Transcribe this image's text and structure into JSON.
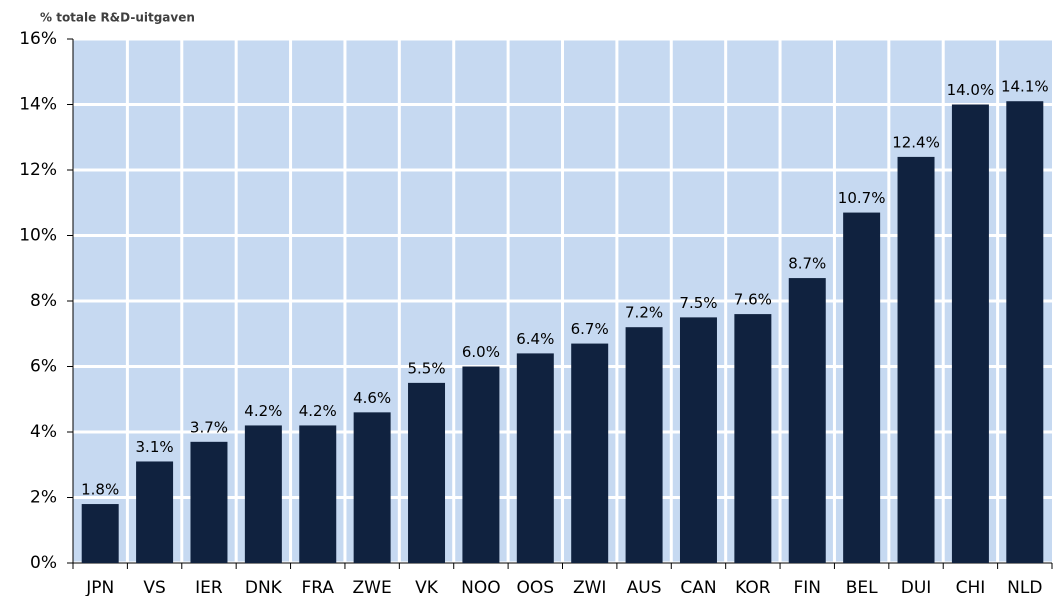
{
  "chart_data": {
    "type": "bar",
    "y_label": "% totale R&D-uitgaven",
    "categories": [
      "JPN",
      "VS",
      "IER",
      "DNK",
      "FRA",
      "ZWE",
      "VK",
      "NOO",
      "OOS",
      "ZWI",
      "AUS",
      "CAN",
      "KOR",
      "FIN",
      "BEL",
      "DUI",
      "CHI",
      "NLD"
    ],
    "values": [
      1.8,
      3.1,
      3.7,
      4.2,
      4.2,
      4.6,
      5.5,
      6.0,
      6.4,
      6.7,
      7.2,
      7.5,
      7.6,
      8.7,
      10.7,
      12.4,
      14.0,
      14.1
    ],
    "value_labels": [
      "1.8%",
      "3.1%",
      "3.7%",
      "4.2%",
      "4.2%",
      "4.6%",
      "5.5%",
      "6.0%",
      "6.4%",
      "6.7%",
      "7.2%",
      "7.5%",
      "7.6%",
      "8.7%",
      "10.7%",
      "12.4%",
      "14.0%",
      "14.1%"
    ],
    "color": "#10223f",
    "plot_background": "#c6d9f1",
    "ylim": [
      0,
      16
    ],
    "yticks": [
      {
        "value": 0,
        "label": "0%"
      },
      {
        "value": 2,
        "label": "2%"
      },
      {
        "value": 4,
        "label": "4%"
      },
      {
        "value": 6,
        "label": "6%"
      },
      {
        "value": 8,
        "label": "8%"
      },
      {
        "value": 10,
        "label": "10%"
      },
      {
        "value": 12,
        "label": "12%"
      },
      {
        "value": 14,
        "label": "14%"
      },
      {
        "value": 16,
        "label": "16%"
      }
    ],
    "grid": true
  }
}
